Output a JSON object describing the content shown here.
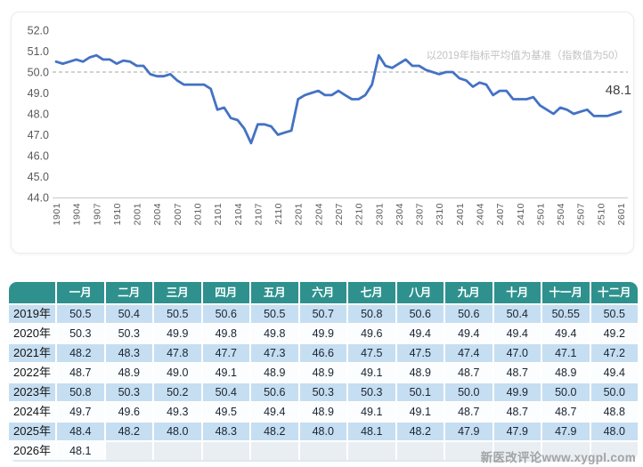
{
  "chart_data": {
    "type": "line",
    "title": "",
    "annotation": "以2019年指标平均值为基准（指数值为50）",
    "end_label": "48.1",
    "ylim": [
      44,
      52
    ],
    "y_ticks": [
      52,
      51,
      50,
      49,
      48,
      47,
      46,
      45,
      44
    ],
    "baseline": 50,
    "grid": "off",
    "line_color": "#4472c4",
    "x_tick_labels": [
      "1901",
      "1904",
      "1907",
      "1910",
      "2001",
      "2004",
      "2007",
      "2010",
      "2101",
      "2104",
      "2107",
      "2110",
      "2201",
      "2204",
      "2207",
      "2210",
      "2301",
      "2304",
      "2307",
      "2310",
      "2401",
      "2404",
      "2407",
      "2410",
      "2501",
      "2504",
      "2507",
      "2510",
      "2601"
    ],
    "values": [
      50.5,
      50.4,
      50.5,
      50.6,
      50.5,
      50.7,
      50.8,
      50.6,
      50.6,
      50.4,
      50.55,
      50.5,
      50.3,
      50.3,
      49.9,
      49.8,
      49.8,
      49.9,
      49.6,
      49.4,
      49.4,
      49.4,
      49.4,
      49.2,
      48.2,
      48.3,
      47.8,
      47.7,
      47.3,
      46.6,
      47.5,
      47.5,
      47.4,
      47.0,
      47.1,
      47.2,
      48.7,
      48.9,
      49.0,
      49.1,
      48.9,
      48.9,
      49.1,
      48.9,
      48.7,
      48.7,
      48.9,
      49.4,
      50.8,
      50.3,
      50.2,
      50.4,
      50.6,
      50.3,
      50.3,
      50.1,
      50.0,
      49.9,
      50.0,
      50.0,
      49.7,
      49.6,
      49.3,
      49.5,
      49.4,
      48.9,
      49.1,
      49.1,
      48.7,
      48.7,
      48.7,
      48.8,
      48.4,
      48.2,
      48.0,
      48.3,
      48.2,
      48.0,
      48.1,
      48.2,
      47.9,
      47.9,
      47.9,
      48.0,
      48.1
    ]
  },
  "table": {
    "corner_label": "",
    "months": [
      "一月",
      "二月",
      "三月",
      "四月",
      "五月",
      "六月",
      "七月",
      "八月",
      "九月",
      "十月",
      "十一月",
      "十二月"
    ],
    "rows": [
      {
        "year": "2019年",
        "values": [
          "50.5",
          "50.4",
          "50.5",
          "50.6",
          "50.5",
          "50.7",
          "50.8",
          "50.6",
          "50.6",
          "50.4",
          "50.55",
          "50.5"
        ]
      },
      {
        "year": "2020年",
        "values": [
          "50.3",
          "50.3",
          "49.9",
          "49.8",
          "49.8",
          "49.9",
          "49.6",
          "49.4",
          "49.4",
          "49.4",
          "49.4",
          "49.2"
        ]
      },
      {
        "year": "2021年",
        "values": [
          "48.2",
          "48.3",
          "47.8",
          "47.7",
          "47.3",
          "46.6",
          "47.5",
          "47.5",
          "47.4",
          "47.0",
          "47.1",
          "47.2"
        ]
      },
      {
        "year": "2022年",
        "values": [
          "48.7",
          "48.9",
          "49.0",
          "49.1",
          "48.9",
          "48.9",
          "49.1",
          "48.9",
          "48.7",
          "48.7",
          "48.9",
          "49.4"
        ]
      },
      {
        "year": "2023年",
        "values": [
          "50.8",
          "50.3",
          "50.2",
          "50.4",
          "50.6",
          "50.3",
          "50.3",
          "50.1",
          "50.0",
          "49.9",
          "50.0",
          "50.0"
        ]
      },
      {
        "year": "2024年",
        "values": [
          "49.7",
          "49.6",
          "49.3",
          "49.5",
          "49.4",
          "48.9",
          "49.1",
          "49.1",
          "48.7",
          "48.7",
          "48.7",
          "48.8"
        ]
      },
      {
        "year": "2025年",
        "values": [
          "48.4",
          "48.2",
          "48.0",
          "48.3",
          "48.2",
          "48.0",
          "48.1",
          "48.2",
          "47.9",
          "47.9",
          "47.9",
          "48.0"
        ]
      },
      {
        "year": "2026年",
        "values": [
          "48.1",
          "",
          "",
          "",
          "",
          "",
          "",
          "",
          "",
          "",
          "",
          ""
        ]
      }
    ]
  },
  "watermark": "新医改评论www.xygpl.com",
  "colors": {
    "line": "#4472c4",
    "header_teal": "#2e918e",
    "row_blue": "#c6def1",
    "row_white": "#fbfdfe",
    "empty_cell": "#e9eef3"
  }
}
